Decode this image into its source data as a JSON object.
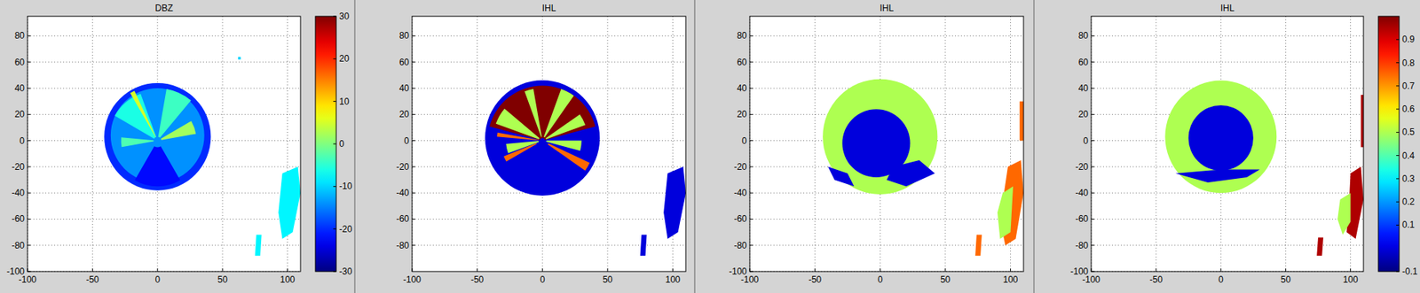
{
  "chart_data": [
    {
      "type": "ppi",
      "title": "DBZ",
      "xlim": [
        -100,
        110
      ],
      "ylim": [
        -100,
        95
      ],
      "xticks": [
        -100,
        -50,
        0,
        50,
        100
      ],
      "yticks": [
        -100,
        -80,
        -60,
        -40,
        -20,
        0,
        20,
        40,
        60,
        80
      ],
      "grid": true,
      "color_range": [
        -30,
        30
      ],
      "color_ticks": [
        -30,
        -20,
        -10,
        0,
        10,
        20,
        30
      ],
      "regions": [
        {
          "cx": 0,
          "cy": 3,
          "r": 41,
          "value": -20
        },
        {
          "cx": 0,
          "cy": 4,
          "r": 36,
          "value": -14
        },
        {
          "cx": 0,
          "cy": 0,
          "r_inner": 3,
          "r": 38,
          "az": [
            -60,
            -20
          ],
          "value": -6
        },
        {
          "cx": 0,
          "cy": 0,
          "r_inner": 3,
          "r": 40,
          "az": [
            10,
            40
          ],
          "value": -4
        },
        {
          "cx": 0,
          "cy": 0,
          "r_inner": 3,
          "r": 30,
          "az": [
            60,
            80
          ],
          "value": 2
        },
        {
          "cx": 0,
          "cy": 0,
          "r_inner": 3,
          "r": 28,
          "az": [
            -100,
            -85
          ],
          "value": -3
        },
        {
          "cx": 0,
          "cy": 0,
          "r_inner": 5,
          "r": 35,
          "az": [
            150,
            210
          ],
          "value": -22
        },
        {
          "cx": 0,
          "cy": 0,
          "r_inner": 3,
          "r": 42,
          "az": [
            -30,
            -25
          ],
          "value": 5
        },
        {
          "points": [
            [
              96,
              -25
            ],
            [
              108,
              -20
            ],
            [
              110,
              -40
            ],
            [
              104,
              -70
            ],
            [
              96,
              -75
            ],
            [
              93,
              -55
            ]
          ],
          "value": -8
        },
        {
          "points": [
            [
              76,
              -72
            ],
            [
              80,
              -72
            ],
            [
              79,
              -88
            ],
            [
              75,
              -88
            ]
          ],
          "value": -8
        },
        {
          "points": [
            [
              62,
              62
            ],
            [
              64,
              62
            ],
            [
              64,
              64
            ],
            [
              62,
              64
            ]
          ],
          "value": -10
        }
      ]
    },
    {
      "type": "ppi",
      "title": "IHL",
      "xlim": [
        -100,
        110
      ],
      "ylim": [
        -100,
        95
      ],
      "xticks": [
        -100,
        -50,
        0,
        50,
        100
      ],
      "yticks": [
        -80,
        -60,
        -40,
        -20,
        0,
        20,
        40,
        60,
        80
      ],
      "grid": true,
      "color_range": [
        -0.1,
        1
      ],
      "regions": [
        {
          "cx": 0,
          "cy": 2,
          "r": 44,
          "value": 0
        },
        {
          "cx": 0,
          "cy": 0,
          "r_inner": 2,
          "r": 42,
          "az": [
            -75,
            75
          ],
          "value": 1
        },
        {
          "cx": 0,
          "cy": 0,
          "r_inner": 3,
          "r": 38,
          "az": [
            -70,
            -50
          ],
          "value": 0.5
        },
        {
          "cx": 0,
          "cy": 0,
          "r_inner": 3,
          "r": 40,
          "az": [
            -20,
            -10
          ],
          "value": 0.5
        },
        {
          "cx": 0,
          "cy": 0,
          "r_inner": 3,
          "r": 42,
          "az": [
            20,
            35
          ],
          "value": 0.5
        },
        {
          "cx": 0,
          "cy": 0,
          "r_inner": 3,
          "r": 35,
          "az": [
            55,
            70
          ],
          "value": 0.5
        },
        {
          "cx": 0,
          "cy": 0,
          "r_inner": 3,
          "r": 30,
          "az": [
            90,
            105
          ],
          "value": 0.5
        },
        {
          "cx": 0,
          "cy": 0,
          "r_inner": 3,
          "r": 28,
          "az": [
            -110,
            -95
          ],
          "value": 0.5
        },
        {
          "cx": 0,
          "cy": 0,
          "r_inner": 5,
          "r": 40,
          "az": [
            115,
            125
          ],
          "value": 0.75
        },
        {
          "cx": 0,
          "cy": 0,
          "r_inner": 5,
          "r": 32,
          "az": [
            -120,
            -112
          ],
          "value": 0.75
        },
        {
          "cx": 0,
          "cy": 0,
          "r_inner": 3,
          "r": 35,
          "az": [
            -85,
            -80
          ],
          "value": 0.75
        },
        {
          "points": [
            [
              96,
              -25
            ],
            [
              108,
              -20
            ],
            [
              110,
              -40
            ],
            [
              104,
              -70
            ],
            [
              96,
              -75
            ],
            [
              93,
              -55
            ]
          ],
          "value": 0
        },
        {
          "points": [
            [
              76,
              -72
            ],
            [
              80,
              -72
            ],
            [
              79,
              -88
            ],
            [
              75,
              -88
            ]
          ],
          "value": 0
        }
      ]
    },
    {
      "type": "ppi",
      "title": "IHL",
      "xlim": [
        -100,
        110
      ],
      "ylim": [
        -100,
        95
      ],
      "xticks": [
        -100,
        -50,
        0,
        50,
        100
      ],
      "yticks": [
        -100,
        -80,
        -60,
        -40,
        -20,
        0,
        20,
        40,
        60,
        80
      ],
      "grid": true,
      "color_range": [
        -0.1,
        1
      ],
      "regions": [
        {
          "cx": 0,
          "cy": 3,
          "r": 44,
          "value": 0.5
        },
        {
          "cx": -3,
          "cy": -2,
          "r": 26,
          "value": 0
        },
        {
          "points": [
            [
              10,
              -20
            ],
            [
              30,
              -15
            ],
            [
              42,
              -25
            ],
            [
              20,
              -35
            ],
            [
              5,
              -30
            ]
          ],
          "value": 0
        },
        {
          "points": [
            [
              -40,
              -20
            ],
            [
              -25,
              -25
            ],
            [
              -20,
              -35
            ],
            [
              -35,
              -30
            ]
          ],
          "value": 0
        },
        {
          "points": [
            [
              98,
              -20
            ],
            [
              108,
              -15
            ],
            [
              110,
              -40
            ],
            [
              104,
              -75
            ],
            [
              96,
              -80
            ],
            [
              92,
              -60
            ]
          ],
          "value": 0.75
        },
        {
          "points": [
            [
              94,
              -40
            ],
            [
              102,
              -35
            ],
            [
              100,
              -70
            ],
            [
              92,
              -75
            ],
            [
              90,
              -55
            ]
          ],
          "value": 0.5
        },
        {
          "points": [
            [
              74,
              -72
            ],
            [
              78,
              -72
            ],
            [
              77,
              -88
            ],
            [
              73,
              -88
            ]
          ],
          "value": 0.75
        },
        {
          "points": [
            [
              107,
              30
            ],
            [
              110,
              30
            ],
            [
              110,
              0
            ],
            [
              107,
              0
            ]
          ],
          "value": 0.75
        }
      ]
    },
    {
      "type": "ppi",
      "title": "IHL",
      "xlim": [
        -100,
        110
      ],
      "ylim": [
        -100,
        95
      ],
      "xticks": [
        -100,
        -50,
        0,
        50,
        100
      ],
      "yticks": [
        -100,
        -80,
        -60,
        -40,
        -20,
        0,
        20,
        40,
        60,
        80
      ],
      "grid": true,
      "color_range": [
        -0.1,
        1
      ],
      "color_ticks": [
        -0.1,
        0.1,
        0.2,
        0.3,
        0.4,
        0.5,
        0.6,
        0.7,
        0.8,
        0.9
      ],
      "regions": [
        {
          "cx": 0,
          "cy": 3,
          "r": 43,
          "value": 0.5
        },
        {
          "cx": 0,
          "cy": 2,
          "r": 25,
          "value": 0
        },
        {
          "points": [
            [
              -35,
              -25
            ],
            [
              -10,
              -32
            ],
            [
              20,
              -28
            ],
            [
              30,
              -22
            ],
            [
              0,
              -22
            ]
          ],
          "value": 0
        },
        {
          "points": [
            [
              100,
              -25
            ],
            [
              108,
              -20
            ],
            [
              110,
              -45
            ],
            [
              104,
              -75
            ],
            [
              97,
              -70
            ],
            [
              99,
              -45
            ]
          ],
          "value": 0.95
        },
        {
          "points": [
            [
              92,
              -45
            ],
            [
              100,
              -40
            ],
            [
              100,
              -62
            ],
            [
              94,
              -72
            ],
            [
              90,
              -60
            ]
          ],
          "value": 0.5
        },
        {
          "points": [
            [
              75,
              -74
            ],
            [
              79,
              -74
            ],
            [
              78,
              -88
            ],
            [
              74,
              -88
            ]
          ],
          "value": 0.95
        },
        {
          "points": [
            [
              108,
              35
            ],
            [
              110,
              35
            ],
            [
              110,
              -5
            ],
            [
              108,
              -5
            ]
          ],
          "value": 0.95
        }
      ]
    }
  ]
}
